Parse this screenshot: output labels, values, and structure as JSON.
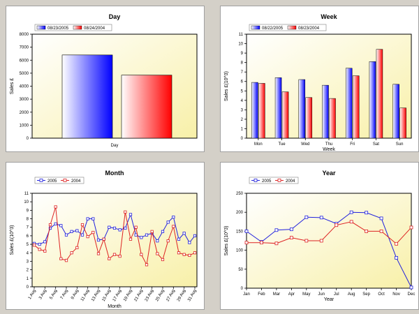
{
  "chart_data": [
    {
      "type": "bar",
      "title": "Day",
      "xlabel": "Day",
      "ylabel": "Sales £",
      "ylim": [
        0,
        8000
      ],
      "yticks": [
        0,
        1000,
        2000,
        3000,
        4000,
        5000,
        6000,
        7000,
        8000
      ],
      "legend": "top-left",
      "series": [
        {
          "name": "08/23/2005",
          "values": [
            6400
          ],
          "color": "#1a1aff"
        },
        {
          "name": "08/24/2004",
          "values": [
            4850
          ],
          "color": "#ff1a1a"
        }
      ]
    },
    {
      "type": "bar",
      "title": "Week",
      "xlabel": "Week",
      "ylabel": "Sales £(10^3)",
      "ylim": [
        0,
        11
      ],
      "yticks": [
        0,
        1,
        2,
        3,
        4,
        5,
        6,
        7,
        8,
        9,
        10,
        11
      ],
      "legend": "top-left",
      "categories": [
        "Mon",
        "Tue",
        "Wed",
        "Thu",
        "Fri",
        "Sat",
        "Sun"
      ],
      "series": [
        {
          "name": "08/22/2005",
          "values": [
            5.9,
            6.4,
            6.2,
            5.6,
            7.4,
            8.1,
            5.7
          ],
          "color": "#1a1aff"
        },
        {
          "name": "08/23/2004",
          "values": [
            5.8,
            4.9,
            4.3,
            4.2,
            6.6,
            9.4,
            3.2
          ],
          "color": "#ff1a1a"
        }
      ]
    },
    {
      "type": "line",
      "title": "Month",
      "xlabel": "Month",
      "ylabel": "Sales £(10^3)",
      "ylim": [
        0,
        11
      ],
      "yticks": [
        0,
        1,
        2,
        3,
        4,
        5,
        6,
        7,
        8,
        9,
        10,
        11
      ],
      "legend": "top-left",
      "x": [
        "1 Aug",
        "2 Aug",
        "3 Aug",
        "4 Aug",
        "5 Aug",
        "6 Aug",
        "7 Aug",
        "8 Aug",
        "9 Aug",
        "10 Aug",
        "11 Aug",
        "12 Aug",
        "13 Aug",
        "14 Aug",
        "15 Aug",
        "16 Aug",
        "17 Aug",
        "18 Aug",
        "19 Aug",
        "20 Aug",
        "21 Aug",
        "22 Aug",
        "23 Aug",
        "24 Aug",
        "25 Aug",
        "26 Aug",
        "27 Aug",
        "28 Aug",
        "29 Aug",
        "30 Aug",
        "31 Aug"
      ],
      "x_tick_labels": [
        "1 Aug",
        "3 Aug",
        "5 Aug",
        "7 Aug",
        "9 Aug",
        "11 Aug",
        "13 Aug",
        "15 Aug",
        "17 Aug",
        "19 Aug",
        "21 Aug",
        "23 Aug",
        "25 Aug",
        "27 Aug",
        "29 Aug",
        "31 Aug"
      ],
      "series": [
        {
          "name": "2005",
          "color": "#2222dd",
          "values": [
            5.1,
            5.0,
            5.3,
            6.9,
            7.4,
            7.2,
            6.1,
            6.5,
            6.6,
            6.1,
            8.0,
            8.0,
            5.5,
            5.6,
            7.0,
            6.9,
            6.7,
            6.9,
            8.5,
            6.1,
            5.8,
            6.1,
            6.3,
            5.4,
            6.5,
            7.6,
            8.2,
            5.6,
            6.3,
            5.2,
            6.0
          ]
        },
        {
          "name": "2004",
          "color": "#dd2222",
          "values": [
            4.9,
            4.4,
            4.2,
            7.3,
            9.4,
            3.3,
            3.1,
            4.0,
            4.6,
            7.3,
            5.9,
            6.4,
            3.9,
            5.6,
            3.3,
            3.8,
            3.6,
            8.8,
            5.6,
            7.0,
            3.8,
            2.6,
            6.5,
            3.9,
            3.2,
            5.4,
            7.1,
            4.0,
            3.8,
            3.7,
            4.0
          ]
        }
      ]
    },
    {
      "type": "line",
      "title": "Year",
      "xlabel": "Year",
      "ylabel": "Sales £(10^3)",
      "ylim": [
        0,
        250
      ],
      "yticks": [
        0,
        50,
        100,
        150,
        200,
        250
      ],
      "legend": "top-left",
      "x": [
        "Jan",
        "Feb",
        "Mar",
        "Apr",
        "May",
        "Jun",
        "Jul",
        "Aug",
        "Sep",
        "Oct",
        "Nov",
        "Dec"
      ],
      "series": [
        {
          "name": "2005",
          "color": "#2222dd",
          "values": [
            150,
            122,
            153,
            155,
            187,
            186,
            170,
            200,
            199,
            184,
            80,
            2
          ]
        },
        {
          "name": "2004",
          "color": "#dd2222",
          "values": [
            120,
            120,
            118,
            133,
            125,
            125,
            166,
            175,
            150,
            150,
            117,
            160
          ]
        }
      ]
    }
  ]
}
